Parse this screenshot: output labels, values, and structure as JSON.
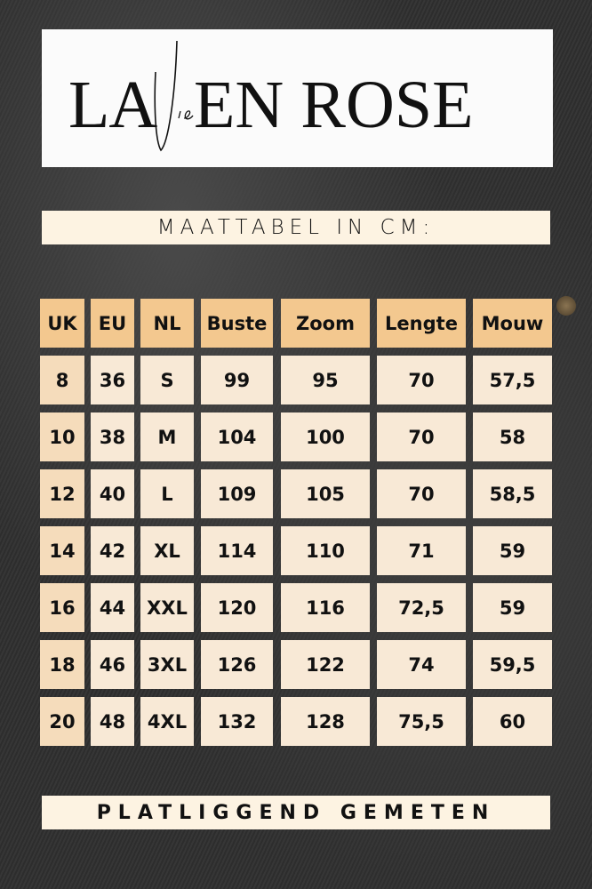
{
  "logo": {
    "text": "LA Vie EN ROSE"
  },
  "title": "MAATTABEL IN CM:",
  "table": {
    "headers": [
      "UK",
      "EU",
      "NL",
      "Buste",
      "Zoom",
      "Lengte",
      "Mouw"
    ],
    "rows": [
      [
        "8",
        "36",
        "S",
        "99",
        "95",
        "70",
        "57,5"
      ],
      [
        "10",
        "38",
        "M",
        "104",
        "100",
        "70",
        "58"
      ],
      [
        "12",
        "40",
        "L",
        "109",
        "105",
        "70",
        "58,5"
      ],
      [
        "14",
        "42",
        "XL",
        "114",
        "110",
        "71",
        "59"
      ],
      [
        "16",
        "44",
        "XXL",
        "120",
        "116",
        "72,5",
        "59"
      ],
      [
        "18",
        "46",
        "3XL",
        "126",
        "122",
        "74",
        "59,5"
      ],
      [
        "20",
        "48",
        "4XL",
        "132",
        "128",
        "75,5",
        "60"
      ]
    ]
  },
  "footer": "PLATLIGGEND GEMETEN",
  "colors": {
    "header_cell": "#f3c88f",
    "body_cell": "#f8e9d6",
    "banner": "#fdf3e2"
  }
}
